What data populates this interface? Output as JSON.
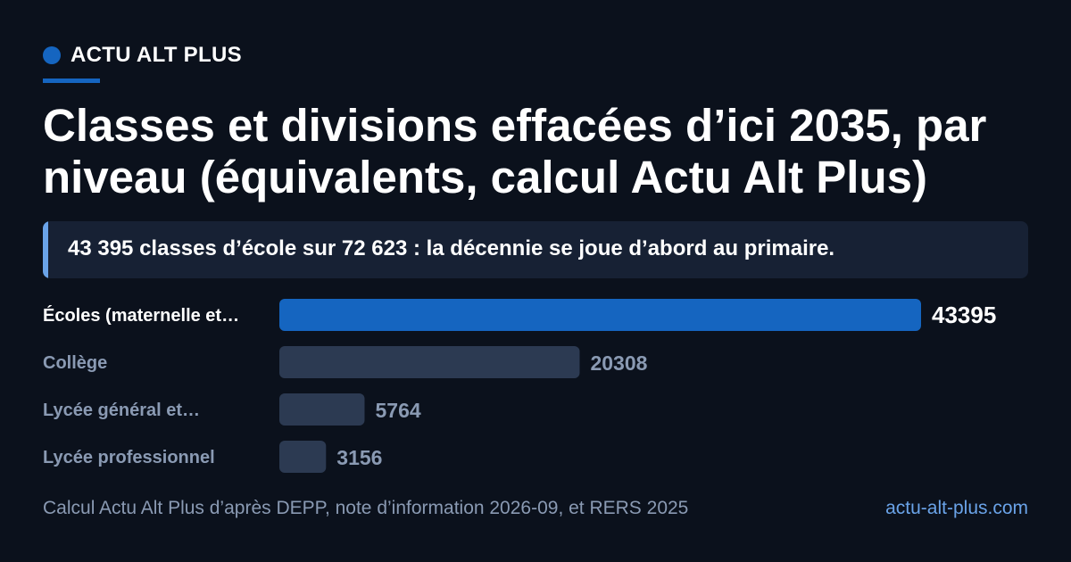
{
  "brand": {
    "name": "ACTU ALT PLUS"
  },
  "headline": "Classes et divisions effacées d’ici 2035, par niveau (équivalents, calcul Actu Alt Plus)",
  "callout": "43 395 classes d’école sur 72 623 : la décennie se joue d’abord au primaire.",
  "footer": {
    "source": "Calcul Actu Alt Plus d’après DEPP, note d’information 2026-09, et RERS 2025",
    "site": "actu-alt-plus.com"
  },
  "colors": {
    "background": "#0b111c",
    "accent": "#1565c0",
    "highlight_bar": "#1565c0",
    "muted_bar": "#2c3a52",
    "muted_text": "#8a9ab3",
    "link": "#6aa3e8"
  },
  "chart_data": {
    "type": "bar",
    "orientation": "horizontal",
    "categories": [
      "Écoles (maternelle et…",
      "Collège",
      "Lycée général et…",
      "Lycée professionnel"
    ],
    "values": [
      43395,
      20308,
      5764,
      3156
    ],
    "value_labels": [
      "43395",
      "20308",
      "5764",
      "3156"
    ],
    "highlighted_index": 0,
    "xlim": [
      0,
      43395
    ],
    "grid": false
  }
}
